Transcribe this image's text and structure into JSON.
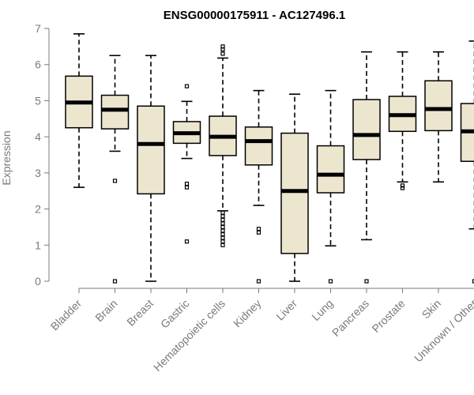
{
  "chart_data": {
    "type": "boxplot",
    "title": "ENSG00000175911 - AC127496.1",
    "xlabel": "",
    "ylabel": "Expression",
    "ylim": [
      0,
      7
    ],
    "yticks": [
      0,
      1,
      2,
      3,
      4,
      5,
      6,
      7
    ],
    "box_color": "#ede6cf",
    "categories": [
      "Bladder",
      "Brain",
      "Breast",
      "Gastric",
      "Hematopoietic cells",
      "Kidney",
      "Liver",
      "Lung",
      "Pancreas",
      "Prostate",
      "Skin",
      "Unknown / Other"
    ],
    "series": [
      {
        "name": "Bladder",
        "whisker_low": 2.6,
        "q1": 4.25,
        "median": 4.95,
        "q3": 5.68,
        "whisker_high": 6.85,
        "outliers": []
      },
      {
        "name": "Brain",
        "whisker_low": 3.6,
        "q1": 4.22,
        "median": 4.75,
        "q3": 5.15,
        "whisker_high": 6.25,
        "outliers": [
          2.78,
          0.0
        ]
      },
      {
        "name": "Breast",
        "whisker_low": 0.0,
        "q1": 2.42,
        "median": 3.8,
        "q3": 4.85,
        "whisker_high": 6.25,
        "outliers": []
      },
      {
        "name": "Gastric",
        "whisker_low": 3.4,
        "q1": 3.82,
        "median": 4.1,
        "q3": 4.42,
        "whisker_high": 4.98,
        "outliers": [
          5.4,
          2.7,
          2.6,
          1.1
        ]
      },
      {
        "name": "Hematopoietic cells",
        "whisker_low": 1.95,
        "q1": 3.48,
        "median": 4.0,
        "q3": 4.57,
        "whisker_high": 6.18,
        "outliers": [
          6.5,
          6.42,
          6.3,
          1.9,
          1.8,
          1.7,
          1.6,
          1.5,
          1.4,
          1.3,
          1.2,
          1.1,
          1.0
        ]
      },
      {
        "name": "Kidney",
        "whisker_low": 2.1,
        "q1": 3.22,
        "median": 3.88,
        "q3": 4.27,
        "whisker_high": 5.28,
        "outliers": [
          1.45,
          1.35,
          0.0
        ]
      },
      {
        "name": "Liver",
        "whisker_low": 0.0,
        "q1": 0.77,
        "median": 2.5,
        "q3": 4.1,
        "whisker_high": 5.18,
        "outliers": []
      },
      {
        "name": "Lung",
        "whisker_low": 0.98,
        "q1": 2.45,
        "median": 2.95,
        "q3": 3.75,
        "whisker_high": 5.28,
        "outliers": [
          0.0
        ]
      },
      {
        "name": "Pancreas",
        "whisker_low": 1.15,
        "q1": 3.37,
        "median": 4.05,
        "q3": 5.03,
        "whisker_high": 6.35,
        "outliers": [
          0.0
        ]
      },
      {
        "name": "Prostate",
        "whisker_low": 2.75,
        "q1": 4.15,
        "median": 4.6,
        "q3": 5.12,
        "whisker_high": 6.35,
        "outliers": [
          2.65,
          2.58
        ]
      },
      {
        "name": "Skin",
        "whisker_low": 2.75,
        "q1": 4.17,
        "median": 4.77,
        "q3": 5.55,
        "whisker_high": 6.35,
        "outliers": []
      },
      {
        "name": "Unknown / Other",
        "whisker_low": 1.45,
        "q1": 3.32,
        "median": 4.15,
        "q3": 4.92,
        "whisker_high": 6.65,
        "outliers": [
          0.0
        ]
      }
    ]
  }
}
